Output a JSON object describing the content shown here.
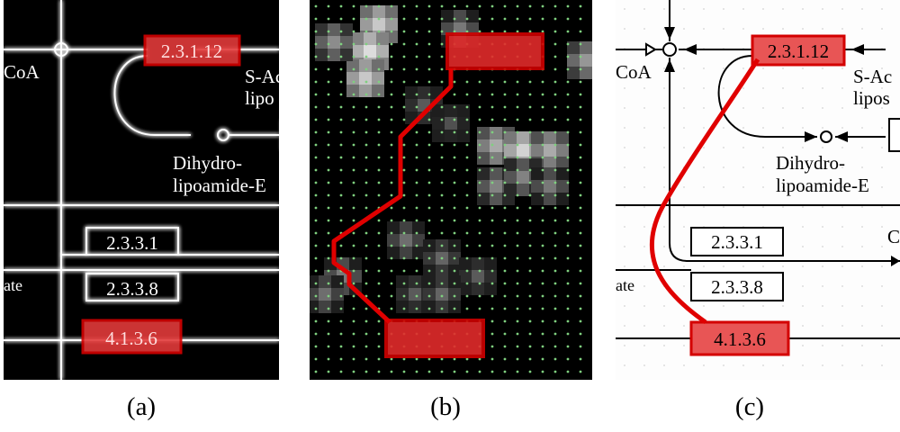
{
  "panels": [
    {
      "id": "a",
      "caption": "(a)",
      "style": "inverted-glow",
      "enzymes": {
        "highlight_top": "2.3.1.12",
        "box_mid1": "2.3.3.1",
        "box_mid2": "2.3.3.8",
        "highlight_bottom": "4.1.3.6"
      },
      "labels": {
        "coa": "CoA",
        "s_acetyl": "S-Ac",
        "lipo": "lipo",
        "dihydro": "Dihydro-",
        "lipoamide": "lipoamide-E",
        "ate": "ate"
      }
    },
    {
      "id": "b",
      "caption": "(b)",
      "style": "downsampled-grid"
    },
    {
      "id": "c",
      "caption": "(c)",
      "style": "original-map",
      "enzymes": {
        "highlight_top": "2.3.1.12",
        "box_mid1": "2.3.3.1",
        "box_mid2": "2.3.3.8",
        "highlight_bottom": "4.1.3.6"
      },
      "labels": {
        "coa": "CoA",
        "s_acetyl": "S-Ac",
        "lipo": "lipos",
        "dihydro": "Dihydro-",
        "lipoamide": "lipoamide-E",
        "ate": "ate",
        "c": "C"
      }
    }
  ],
  "colors": {
    "highlight_fill": "#e23a3a",
    "highlight_border": "#d40000",
    "path_line": "#e00000",
    "grid_dot": "#7fd07f"
  }
}
